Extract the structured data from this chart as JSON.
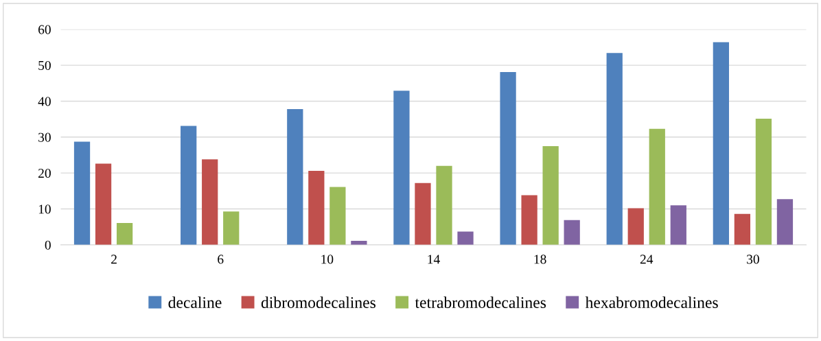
{
  "chart_data": {
    "type": "bar",
    "categories": [
      "2",
      "6",
      "10",
      "14",
      "18",
      "24",
      "30"
    ],
    "series": [
      {
        "name": "decaline",
        "color": "#4f81bd",
        "values": [
          28.7,
          33.1,
          37.8,
          42.9,
          48.1,
          53.4,
          56.4
        ]
      },
      {
        "name": "dibromodecalines",
        "color": "#c0504d",
        "values": [
          22.6,
          23.8,
          20.6,
          17.2,
          13.8,
          10.2,
          8.6
        ]
      },
      {
        "name": "tetrabromodecalines",
        "color": "#9bbb59",
        "values": [
          6.1,
          9.3,
          16.1,
          22.0,
          27.5,
          32.3,
          35.1
        ]
      },
      {
        "name": "hexabromodecalines",
        "color": "#8064a2",
        "values": [
          null,
          null,
          1.1,
          3.7,
          6.9,
          11.0,
          12.7
        ]
      }
    ],
    "ylim": [
      0,
      60
    ],
    "yticks": [
      0,
      10,
      20,
      30,
      40,
      50,
      60
    ],
    "grid": "y",
    "legend": "bottom"
  }
}
